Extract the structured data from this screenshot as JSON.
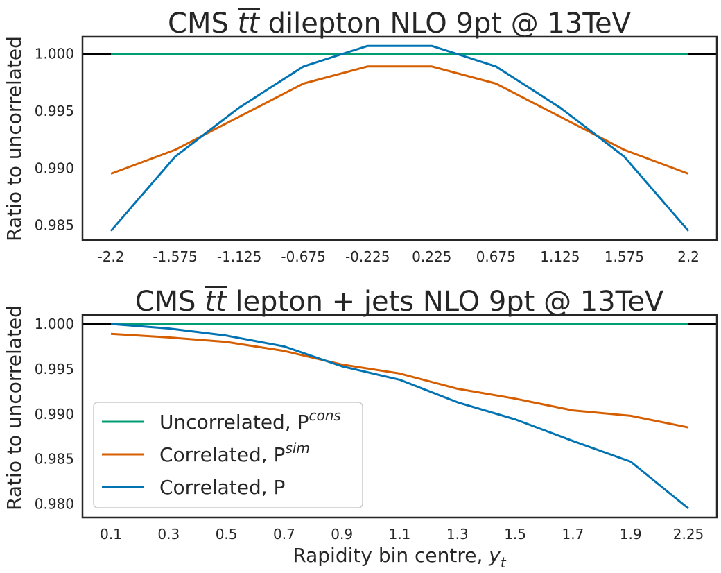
{
  "colors": {
    "uncorrelated": "#029e73",
    "correlated_sim": "#d55e00",
    "correlated": "#0173b2",
    "reference_line": "#000000",
    "axes": "#262626"
  },
  "chart_data": [
    {
      "type": "line",
      "title_parts": [
        "CMS ",
        "tt",
        " dilepton NLO 9pt @ 13TeV"
      ],
      "title": "CMS tt dilepton NLO 9pt @ 13TeV",
      "xlabel": "",
      "ylabel": "Ratio to uncorrelated",
      "tick_labels": [
        "-2.2",
        "-1.575",
        "-1.125",
        "-0.675",
        "-0.225",
        "0.225",
        "0.675",
        "1.125",
        "1.575",
        "2.2"
      ],
      "ylim": [
        0.9837,
        1.0015
      ],
      "yticks": [
        "0.985",
        "0.990",
        "0.995",
        "1.000"
      ],
      "grid": false,
      "reference_y": 1.0,
      "series": [
        {
          "key": "uncorrelated",
          "values": [
            1.0,
            1.0,
            1.0,
            1.0,
            1.0,
            1.0,
            1.0,
            1.0,
            1.0,
            1.0
          ]
        },
        {
          "key": "correlated_sim",
          "values": [
            0.9895,
            0.9916,
            0.9945,
            0.9974,
            0.9989,
            0.9989,
            0.9974,
            0.9945,
            0.9916,
            0.9895
          ]
        },
        {
          "key": "correlated",
          "values": [
            0.9845,
            0.991,
            0.9953,
            0.9989,
            1.0007,
            1.0007,
            0.9989,
            0.9953,
            0.991,
            0.9845
          ]
        }
      ]
    },
    {
      "type": "line",
      "title_parts": [
        "CMS ",
        "tt",
        " lepton + jets NLO 9pt @ 13TeV"
      ],
      "title": "CMS tt lepton + jets NLO 9pt @ 13TeV",
      "xlabel": "Rapidity bin centre,",
      "xlabel_symbol": "y",
      "xlabel_subscript": "t",
      "ylabel": "Ratio to uncorrelated",
      "tick_labels": [
        "0.1",
        "0.3",
        "0.5",
        "0.7",
        "0.9",
        "1.1",
        "1.3",
        "1.5",
        "1.7",
        "1.9",
        "2.25"
      ],
      "ylim": [
        0.9785,
        1.001
      ],
      "yticks": [
        "0.980",
        "0.985",
        "0.990",
        "0.995",
        "1.000"
      ],
      "grid": false,
      "reference_y": 1.0,
      "legend_placement": "lower-left",
      "series": [
        {
          "key": "uncorrelated",
          "values": [
            1.0,
            1.0,
            1.0,
            1.0,
            1.0,
            1.0,
            1.0,
            1.0,
            1.0,
            1.0,
            1.0
          ]
        },
        {
          "key": "correlated_sim",
          "values": [
            0.9989,
            0.9985,
            0.998,
            0.997,
            0.9955,
            0.9945,
            0.9928,
            0.9917,
            0.9904,
            0.9898,
            0.9885
          ]
        },
        {
          "key": "correlated",
          "values": [
            1.0,
            0.9995,
            0.9987,
            0.9975,
            0.9953,
            0.9938,
            0.9913,
            0.9894,
            0.987,
            0.9847,
            0.9795
          ]
        }
      ]
    }
  ],
  "legend": [
    {
      "key": "uncorrelated",
      "label": "Uncorrelated, P",
      "sup": "cons"
    },
    {
      "key": "correlated_sim",
      "label": "Correlated, P",
      "sup": "sim"
    },
    {
      "key": "correlated",
      "label": "Correlated, P",
      "sup": ""
    }
  ]
}
